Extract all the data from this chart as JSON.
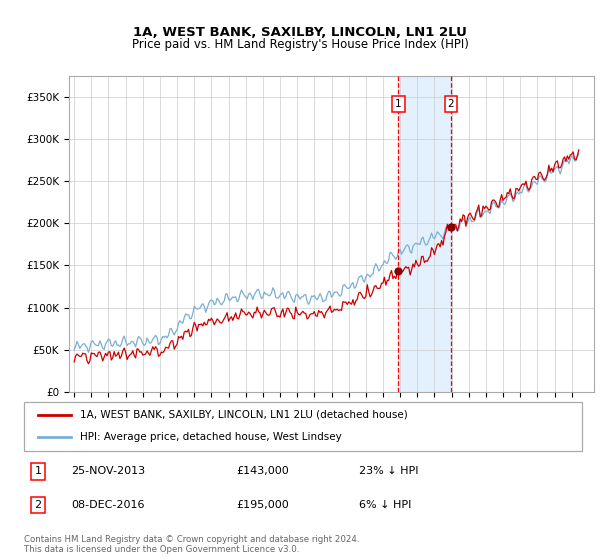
{
  "title1": "1A, WEST BANK, SAXILBY, LINCOLN, LN1 2LU",
  "title2": "Price paid vs. HM Land Registry's House Price Index (HPI)",
  "ylim": [
    0,
    370000
  ],
  "xlim_start": 1994.7,
  "xlim_end": 2025.3,
  "sale1_date": 2013.9,
  "sale2_date": 2016.95,
  "sale1_price": 143000,
  "sale2_price": 195000,
  "sale1_label": "25-NOV-2013",
  "sale2_label": "08-DEC-2016",
  "sale1_pct": "23% ↓ HPI",
  "sale2_pct": "6% ↓ HPI",
  "legend_line1": "1A, WEST BANK, SAXILBY, LINCOLN, LN1 2LU (detached house)",
  "legend_line2": "HPI: Average price, detached house, West Lindsey",
  "footer1": "Contains HM Land Registry data © Crown copyright and database right 2024.",
  "footer2": "This data is licensed under the Open Government Licence v3.0.",
  "line_color_red": "#cc0000",
  "line_color_blue": "#7aafd4",
  "shade_color": "#ddeeff",
  "grid_color": "#cccccc",
  "background_color": "#ffffff"
}
